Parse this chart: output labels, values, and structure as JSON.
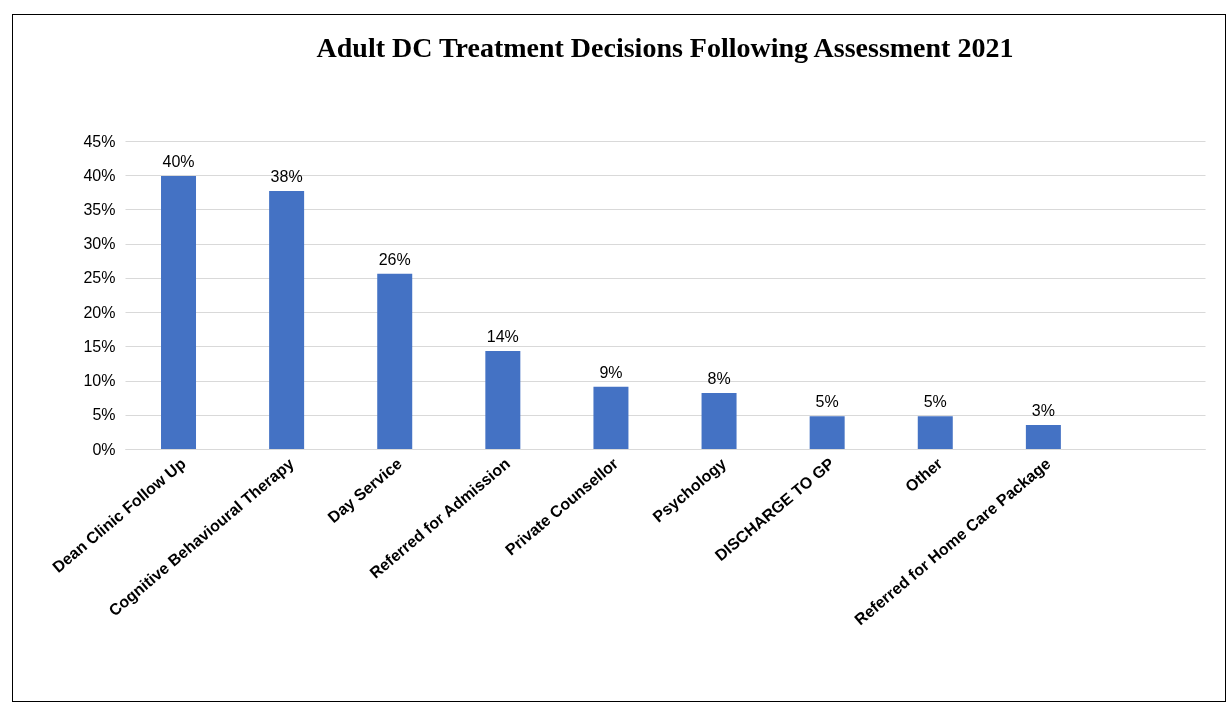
{
  "chart_data": {
    "type": "bar",
    "title": "Adult DC Treatment Decisions Following Assessment 2021",
    "categories": [
      "Dean Clinic Follow Up",
      "Cognitive Behavioural Therapy",
      "Day Service",
      "Referred for Admission",
      "Private Counsellor",
      "Psychology",
      "DISCHARGE TO GP",
      "Other",
      "Referred for Home Care Package",
      null
    ],
    "values": [
      39.9,
      37.7,
      25.6,
      14.3,
      9.1,
      8.2,
      4.8,
      4.8,
      3.5,
      null
    ],
    "value_labels": [
      "40%",
      "38%",
      "26%",
      "14%",
      "9%",
      "8%",
      "5%",
      "5%",
      "3%",
      null
    ],
    "color": "#4472c4",
    "ylim": [
      0,
      45
    ],
    "yticks": [
      {
        "value": 0,
        "label": "0%"
      },
      {
        "value": 5,
        "label": "5%"
      },
      {
        "value": 10,
        "label": "10%"
      },
      {
        "value": 15,
        "label": "15%"
      },
      {
        "value": 20,
        "label": "20%"
      },
      {
        "value": 25,
        "label": "25%"
      },
      {
        "value": 30,
        "label": "30%"
      },
      {
        "value": 35,
        "label": "35%"
      },
      {
        "value": 40,
        "label": "40%"
      },
      {
        "value": 45,
        "label": "45%"
      }
    ],
    "grid": "y"
  }
}
